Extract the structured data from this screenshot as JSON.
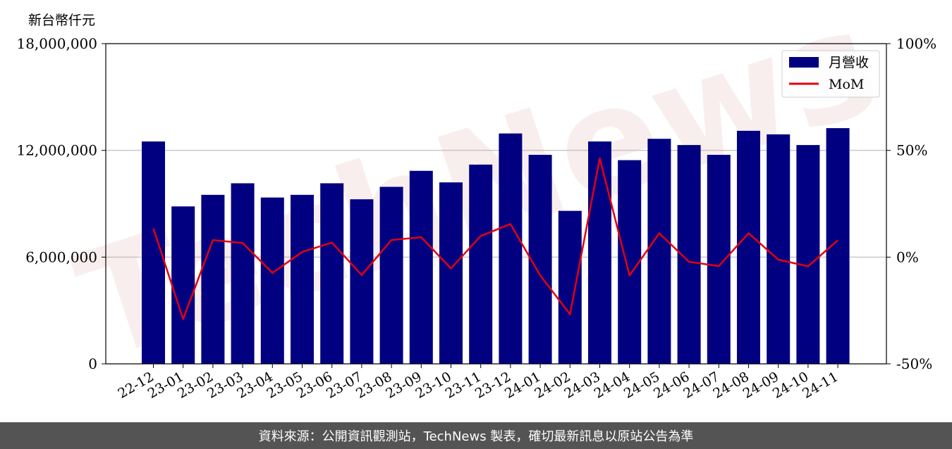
{
  "chart_data": {
    "type": "bar",
    "unit_label": "新台幣仟元",
    "categories": [
      "22-12",
      "23-01",
      "23-02",
      "23-03",
      "23-04",
      "23-05",
      "23-06",
      "23-07",
      "23-08",
      "23-09",
      "23-10",
      "23-11",
      "23-12",
      "24-01",
      "24-02",
      "24-03",
      "24-04",
      "24-05",
      "24-06",
      "24-07",
      "24-08",
      "24-09",
      "24-10",
      "24-11"
    ],
    "series": [
      {
        "name": "月營收",
        "kind": "bar",
        "axis": "left",
        "color": "#000080",
        "values": [
          12500000,
          8850000,
          9500000,
          10150000,
          9350000,
          9500000,
          10150000,
          9250000,
          9950000,
          10850000,
          10200000,
          11200000,
          12950000,
          11750000,
          8600000,
          12500000,
          11450000,
          12650000,
          12300000,
          11750000,
          13100000,
          12900000,
          12300000,
          13250000
        ]
      },
      {
        "name": "MoM",
        "kind": "line",
        "axis": "right",
        "color": "#e3000f",
        "values": [
          13.4,
          -29,
          8,
          6.6,
          -7.4,
          2.4,
          6.8,
          -8.4,
          8,
          9.3,
          -5.3,
          9.9,
          15.5,
          -8.6,
          -26.8,
          46.3,
          -8.6,
          11.2,
          -2.2,
          -4.2,
          11.2,
          -1.2,
          -4.3,
          7.9
        ]
      }
    ],
    "y_left": {
      "min": 0,
      "max": 18000000,
      "ticks": [
        "0",
        "6,000,000",
        "12,000,000",
        "18,000,000"
      ]
    },
    "y_right": {
      "min": -50,
      "max": 100,
      "ticks": [
        "-50%",
        "0%",
        "50%",
        "100%"
      ]
    },
    "grid": "horizontal",
    "legend_position": "top-right",
    "watermark": "TechNews"
  },
  "footer": {
    "source": "資料來源：公開資訊觀測站，TechNews 製表，確切最新訊息以原站公告為準"
  }
}
